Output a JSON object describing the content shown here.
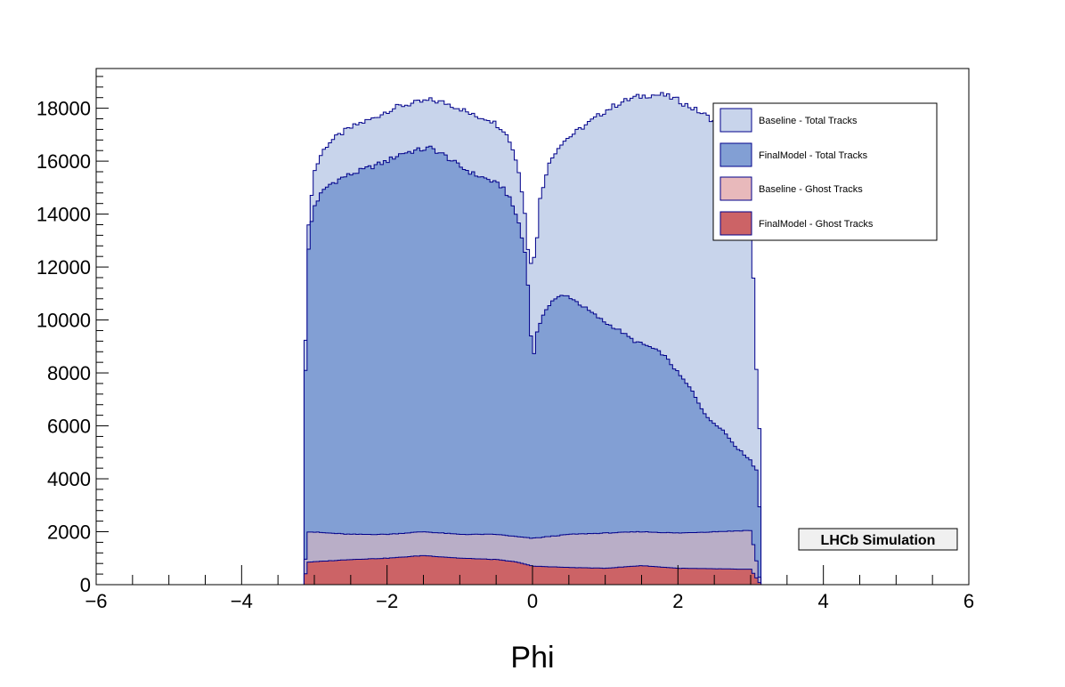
{
  "chart_data": {
    "type": "area",
    "style": "stacked step histograms (filled, overlaid)",
    "title": "",
    "xlabel": "Phi",
    "ylabel": "",
    "xlim": [
      -6,
      6
    ],
    "ylim": [
      0,
      19500
    ],
    "x_ticks": [
      -6,
      -4,
      -2,
      0,
      2,
      4,
      6
    ],
    "x_tick_labels": [
      "−6",
      "−4",
      "−2",
      "0",
      "2",
      "4",
      "6"
    ],
    "y_ticks": [
      0,
      2000,
      4000,
      6000,
      8000,
      10000,
      12000,
      14000,
      16000,
      18000
    ],
    "y_tick_labels": [
      "0",
      "2000",
      "4000",
      "6000",
      "8000",
      "10000",
      "12000",
      "14000",
      "16000",
      "18000"
    ],
    "grid": false,
    "legend": {
      "position": "top-right",
      "entries": [
        {
          "label": "Baseline - Total Tracks",
          "color": "#c8d4eb"
        },
        {
          "label": "FinalModel - Total Tracks",
          "color": "#829fd4"
        },
        {
          "label": "Baseline - Ghost Tracks",
          "color": "#e8b9bb"
        },
        {
          "label": "FinalModel - Ghost Tracks",
          "color": "#cc6366"
        }
      ]
    },
    "annotation": "LHCb Simulation",
    "line_color": "#00008b",
    "series": [
      {
        "name": "Baseline - Total Tracks",
        "color": "#c8d4eb",
        "points": [
          [
            -3.14,
            6000
          ],
          [
            -3.1,
            12800
          ],
          [
            -3.05,
            14500
          ],
          [
            -3.0,
            15600
          ],
          [
            -2.9,
            16300
          ],
          [
            -2.8,
            16700
          ],
          [
            -2.6,
            17100
          ],
          [
            -2.4,
            17400
          ],
          [
            -2.2,
            17600
          ],
          [
            -2.0,
            17900
          ],
          [
            -1.8,
            18100
          ],
          [
            -1.6,
            18200
          ],
          [
            -1.4,
            18300
          ],
          [
            -1.2,
            18200
          ],
          [
            -1.0,
            18000
          ],
          [
            -0.8,
            17700
          ],
          [
            -0.6,
            17600
          ],
          [
            -0.4,
            17200
          ],
          [
            -0.3,
            16700
          ],
          [
            -0.2,
            15800
          ],
          [
            -0.1,
            14000
          ],
          [
            -0.05,
            12300
          ],
          [
            0.0,
            12100
          ],
          [
            0.05,
            12700
          ],
          [
            0.1,
            14500
          ],
          [
            0.2,
            15700
          ],
          [
            0.3,
            16300
          ],
          [
            0.4,
            16700
          ],
          [
            0.6,
            17100
          ],
          [
            0.8,
            17500
          ],
          [
            1.0,
            17900
          ],
          [
            1.2,
            18200
          ],
          [
            1.4,
            18400
          ],
          [
            1.6,
            18500
          ],
          [
            1.8,
            18500
          ],
          [
            2.0,
            18300
          ],
          [
            2.2,
            18000
          ],
          [
            2.4,
            17700
          ],
          [
            2.6,
            17300
          ],
          [
            2.8,
            16700
          ],
          [
            2.95,
            15000
          ],
          [
            3.05,
            11000
          ],
          [
            3.1,
            6000
          ],
          [
            3.14,
            5800
          ]
        ]
      },
      {
        "name": "FinalModel - Total Tracks",
        "color": "#829fd4",
        "points": [
          [
            -3.14,
            4500
          ],
          [
            -3.1,
            12000
          ],
          [
            -3.05,
            13500
          ],
          [
            -3.0,
            14300
          ],
          [
            -2.9,
            14800
          ],
          [
            -2.8,
            15100
          ],
          [
            -2.6,
            15400
          ],
          [
            -2.4,
            15600
          ],
          [
            -2.2,
            15800
          ],
          [
            -2.0,
            16000
          ],
          [
            -1.8,
            16300
          ],
          [
            -1.6,
            16400
          ],
          [
            -1.4,
            16500
          ],
          [
            -1.2,
            16200
          ],
          [
            -1.0,
            15800
          ],
          [
            -0.8,
            15500
          ],
          [
            -0.6,
            15300
          ],
          [
            -0.4,
            15000
          ],
          [
            -0.3,
            14500
          ],
          [
            -0.2,
            13800
          ],
          [
            -0.1,
            12500
          ],
          [
            -0.05,
            11000
          ],
          [
            0.0,
            8200
          ],
          [
            0.05,
            9500
          ],
          [
            0.1,
            9800
          ],
          [
            0.2,
            10500
          ],
          [
            0.3,
            10800
          ],
          [
            0.4,
            10900
          ],
          [
            0.5,
            10900
          ],
          [
            0.6,
            10700
          ],
          [
            0.8,
            10300
          ],
          [
            1.0,
            9900
          ],
          [
            1.2,
            9600
          ],
          [
            1.4,
            9200
          ],
          [
            1.6,
            9000
          ],
          [
            1.8,
            8700
          ],
          [
            2.0,
            8000
          ],
          [
            2.2,
            7300
          ],
          [
            2.4,
            6300
          ],
          [
            2.6,
            5900
          ],
          [
            2.8,
            5200
          ],
          [
            3.0,
            4700
          ],
          [
            3.05,
            4400
          ],
          [
            3.1,
            4300
          ],
          [
            3.14,
            1700
          ]
        ]
      },
      {
        "name": "Baseline - Ghost Tracks",
        "color": "#e8b9bb",
        "points": [
          [
            -3.14,
            0
          ],
          [
            -3.1,
            2000
          ],
          [
            -2.5,
            1900
          ],
          [
            -2.0,
            1900
          ],
          [
            -1.5,
            2000
          ],
          [
            -1.0,
            1900
          ],
          [
            -0.5,
            1900
          ],
          [
            0.0,
            1750
          ],
          [
            0.5,
            1900
          ],
          [
            1.0,
            1950
          ],
          [
            1.5,
            2000
          ],
          [
            2.0,
            1950
          ],
          [
            2.5,
            2000
          ],
          [
            3.0,
            2050
          ],
          [
            3.14,
            0
          ]
        ]
      },
      {
        "name": "FinalModel - Ghost Tracks",
        "color": "#cc6366",
        "points": [
          [
            -3.14,
            0
          ],
          [
            -3.1,
            850
          ],
          [
            -2.5,
            950
          ],
          [
            -2.0,
            1000
          ],
          [
            -1.5,
            1100
          ],
          [
            -1.0,
            1000
          ],
          [
            -0.5,
            950
          ],
          [
            -0.2,
            850
          ],
          [
            0.0,
            700
          ],
          [
            0.5,
            650
          ],
          [
            1.0,
            620
          ],
          [
            1.5,
            720
          ],
          [
            2.0,
            620
          ],
          [
            2.5,
            600
          ],
          [
            3.0,
            580
          ],
          [
            3.14,
            0
          ]
        ]
      }
    ]
  }
}
